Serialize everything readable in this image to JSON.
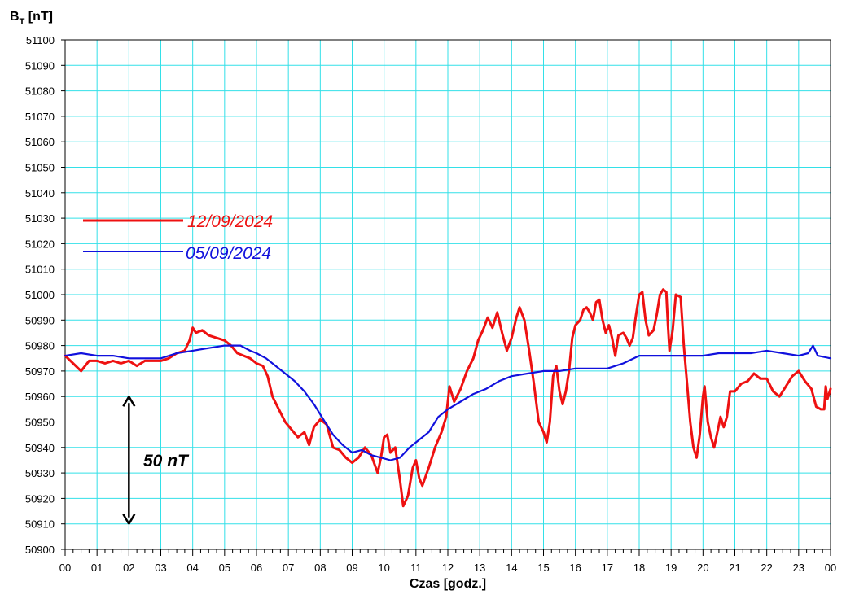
{
  "chart_data": {
    "type": "line",
    "ylabel_main": "B",
    "ylabel_sub": "T",
    "ylabel_unit": " [nT]",
    "xlabel": "Czas [godz.]",
    "ylim": [
      50900,
      51100
    ],
    "ystep": 10,
    "xlim": [
      0,
      24
    ],
    "xtick_labels": [
      "00",
      "01",
      "02",
      "03",
      "04",
      "05",
      "06",
      "07",
      "08",
      "09",
      "10",
      "11",
      "12",
      "13",
      "14",
      "15",
      "16",
      "17",
      "18",
      "19",
      "20",
      "21",
      "22",
      "23",
      "00"
    ],
    "grid": true,
    "grid_color": "#33e0e8",
    "legend_placement": "upper-left",
    "annotation": {
      "label": "50 nT",
      "x": 2.0,
      "y_from": 50910,
      "y_to": 50960
    },
    "series": [
      {
        "name": "12/09/2024",
        "color": "#ee1111",
        "points": [
          [
            0.0,
            50976
          ],
          [
            0.25,
            50973
          ],
          [
            0.5,
            50970
          ],
          [
            0.75,
            50974
          ],
          [
            1.0,
            50974
          ],
          [
            1.25,
            50973
          ],
          [
            1.5,
            50974
          ],
          [
            1.75,
            50973
          ],
          [
            2.0,
            50974
          ],
          [
            2.25,
            50972
          ],
          [
            2.5,
            50974
          ],
          [
            2.75,
            50974
          ],
          [
            3.0,
            50974
          ],
          [
            3.25,
            50975
          ],
          [
            3.5,
            50977
          ],
          [
            3.75,
            50978
          ],
          [
            3.9,
            50982
          ],
          [
            4.0,
            50987
          ],
          [
            4.1,
            50985
          ],
          [
            4.3,
            50986
          ],
          [
            4.5,
            50984
          ],
          [
            4.75,
            50983
          ],
          [
            5.0,
            50982
          ],
          [
            5.2,
            50980
          ],
          [
            5.4,
            50977
          ],
          [
            5.6,
            50976
          ],
          [
            5.8,
            50975
          ],
          [
            6.0,
            50973
          ],
          [
            6.2,
            50972
          ],
          [
            6.35,
            50968
          ],
          [
            6.5,
            50960
          ],
          [
            6.7,
            50955
          ],
          [
            6.9,
            50950
          ],
          [
            7.1,
            50947
          ],
          [
            7.3,
            50944
          ],
          [
            7.5,
            50946
          ],
          [
            7.65,
            50941
          ],
          [
            7.8,
            50948
          ],
          [
            8.0,
            50951
          ],
          [
            8.2,
            50949
          ],
          [
            8.4,
            50940
          ],
          [
            8.6,
            50939
          ],
          [
            8.8,
            50936
          ],
          [
            9.0,
            50934
          ],
          [
            9.2,
            50936
          ],
          [
            9.4,
            50940
          ],
          [
            9.6,
            50937
          ],
          [
            9.8,
            50930
          ],
          [
            9.9,
            50936
          ],
          [
            10.0,
            50944
          ],
          [
            10.1,
            50945
          ],
          [
            10.2,
            50938
          ],
          [
            10.35,
            50940
          ],
          [
            10.5,
            50927
          ],
          [
            10.6,
            50917
          ],
          [
            10.75,
            50921
          ],
          [
            10.9,
            50932
          ],
          [
            11.0,
            50935
          ],
          [
            11.1,
            50928
          ],
          [
            11.2,
            50925
          ],
          [
            11.4,
            50932
          ],
          [
            11.6,
            50940
          ],
          [
            11.8,
            50946
          ],
          [
            11.95,
            50952
          ],
          [
            12.05,
            50964
          ],
          [
            12.2,
            50958
          ],
          [
            12.4,
            50963
          ],
          [
            12.6,
            50970
          ],
          [
            12.8,
            50975
          ],
          [
            12.95,
            50982
          ],
          [
            13.1,
            50986
          ],
          [
            13.25,
            50991
          ],
          [
            13.4,
            50987
          ],
          [
            13.55,
            50993
          ],
          [
            13.7,
            50985
          ],
          [
            13.85,
            50978
          ],
          [
            14.0,
            50983
          ],
          [
            14.15,
            50991
          ],
          [
            14.25,
            50995
          ],
          [
            14.4,
            50990
          ],
          [
            14.55,
            50978
          ],
          [
            14.7,
            50965
          ],
          [
            14.85,
            50950
          ],
          [
            15.0,
            50946
          ],
          [
            15.1,
            50942
          ],
          [
            15.2,
            50950
          ],
          [
            15.3,
            50968
          ],
          [
            15.4,
            50972
          ],
          [
            15.5,
            50962
          ],
          [
            15.6,
            50957
          ],
          [
            15.7,
            50962
          ],
          [
            15.8,
            50970
          ],
          [
            15.9,
            50983
          ],
          [
            16.0,
            50988
          ],
          [
            16.15,
            50990
          ],
          [
            16.25,
            50994
          ],
          [
            16.35,
            50995
          ],
          [
            16.45,
            50993
          ],
          [
            16.55,
            50990
          ],
          [
            16.65,
            50997
          ],
          [
            16.75,
            50998
          ],
          [
            16.85,
            50990
          ],
          [
            16.95,
            50985
          ],
          [
            17.05,
            50988
          ],
          [
            17.15,
            50983
          ],
          [
            17.25,
            50976
          ],
          [
            17.35,
            50984
          ],
          [
            17.5,
            50985
          ],
          [
            17.6,
            50983
          ],
          [
            17.7,
            50980
          ],
          [
            17.8,
            50983
          ],
          [
            17.9,
            50992
          ],
          [
            18.0,
            51000
          ],
          [
            18.1,
            51001
          ],
          [
            18.2,
            50990
          ],
          [
            18.3,
            50984
          ],
          [
            18.45,
            50986
          ],
          [
            18.55,
            50992
          ],
          [
            18.65,
            51000
          ],
          [
            18.75,
            51002
          ],
          [
            18.85,
            51001
          ],
          [
            18.9,
            50988
          ],
          [
            18.95,
            50978
          ],
          [
            19.05,
            50986
          ],
          [
            19.15,
            51000
          ],
          [
            19.3,
            50999
          ],
          [
            19.4,
            50980
          ],
          [
            19.5,
            50965
          ],
          [
            19.6,
            50950
          ],
          [
            19.7,
            50940
          ],
          [
            19.8,
            50936
          ],
          [
            19.9,
            50945
          ],
          [
            20.0,
            50960
          ],
          [
            20.05,
            50964
          ],
          [
            20.15,
            50950
          ],
          [
            20.25,
            50944
          ],
          [
            20.35,
            50940
          ],
          [
            20.45,
            50946
          ],
          [
            20.55,
            50952
          ],
          [
            20.65,
            50948
          ],
          [
            20.75,
            50952
          ],
          [
            20.85,
            50962
          ],
          [
            21.0,
            50962
          ],
          [
            21.2,
            50965
          ],
          [
            21.4,
            50966
          ],
          [
            21.6,
            50969
          ],
          [
            21.8,
            50967
          ],
          [
            22.0,
            50967
          ],
          [
            22.2,
            50962
          ],
          [
            22.4,
            50960
          ],
          [
            22.6,
            50964
          ],
          [
            22.8,
            50968
          ],
          [
            23.0,
            50970
          ],
          [
            23.2,
            50966
          ],
          [
            23.4,
            50963
          ],
          [
            23.55,
            50956
          ],
          [
            23.7,
            50955
          ],
          [
            23.8,
            50955
          ],
          [
            23.85,
            50964
          ],
          [
            23.9,
            50959
          ],
          [
            24.0,
            50963
          ]
        ]
      },
      {
        "name": "05/09/2024",
        "color": "#1111dd",
        "points": [
          [
            0.0,
            50976
          ],
          [
            0.5,
            50977
          ],
          [
            1.0,
            50976
          ],
          [
            1.5,
            50976
          ],
          [
            2.0,
            50975
          ],
          [
            2.5,
            50975
          ],
          [
            3.0,
            50975
          ],
          [
            3.5,
            50977
          ],
          [
            4.0,
            50978
          ],
          [
            4.5,
            50979
          ],
          [
            5.0,
            50980
          ],
          [
            5.3,
            50980
          ],
          [
            5.5,
            50980
          ],
          [
            5.8,
            50978
          ],
          [
            6.0,
            50977
          ],
          [
            6.3,
            50975
          ],
          [
            6.6,
            50972
          ],
          [
            6.9,
            50969
          ],
          [
            7.2,
            50966
          ],
          [
            7.5,
            50962
          ],
          [
            7.8,
            50957
          ],
          [
            8.1,
            50951
          ],
          [
            8.4,
            50945
          ],
          [
            8.7,
            50941
          ],
          [
            9.0,
            50938
          ],
          [
            9.3,
            50939
          ],
          [
            9.6,
            50937
          ],
          [
            9.9,
            50936
          ],
          [
            10.2,
            50935
          ],
          [
            10.5,
            50936
          ],
          [
            10.8,
            50940
          ],
          [
            11.1,
            50943
          ],
          [
            11.4,
            50946
          ],
          [
            11.7,
            50952
          ],
          [
            12.0,
            50955
          ],
          [
            12.4,
            50958
          ],
          [
            12.8,
            50961
          ],
          [
            13.2,
            50963
          ],
          [
            13.6,
            50966
          ],
          [
            14.0,
            50968
          ],
          [
            14.5,
            50969
          ],
          [
            15.0,
            50970
          ],
          [
            15.5,
            50970
          ],
          [
            16.0,
            50971
          ],
          [
            16.5,
            50971
          ],
          [
            17.0,
            50971
          ],
          [
            17.5,
            50973
          ],
          [
            18.0,
            50976
          ],
          [
            18.5,
            50976
          ],
          [
            19.0,
            50976
          ],
          [
            19.5,
            50976
          ],
          [
            20.0,
            50976
          ],
          [
            20.5,
            50977
          ],
          [
            21.0,
            50977
          ],
          [
            21.5,
            50977
          ],
          [
            22.0,
            50978
          ],
          [
            22.5,
            50977
          ],
          [
            23.0,
            50976
          ],
          [
            23.3,
            50977
          ],
          [
            23.45,
            50980
          ],
          [
            23.6,
            50976
          ],
          [
            24.0,
            50975
          ]
        ]
      }
    ]
  }
}
